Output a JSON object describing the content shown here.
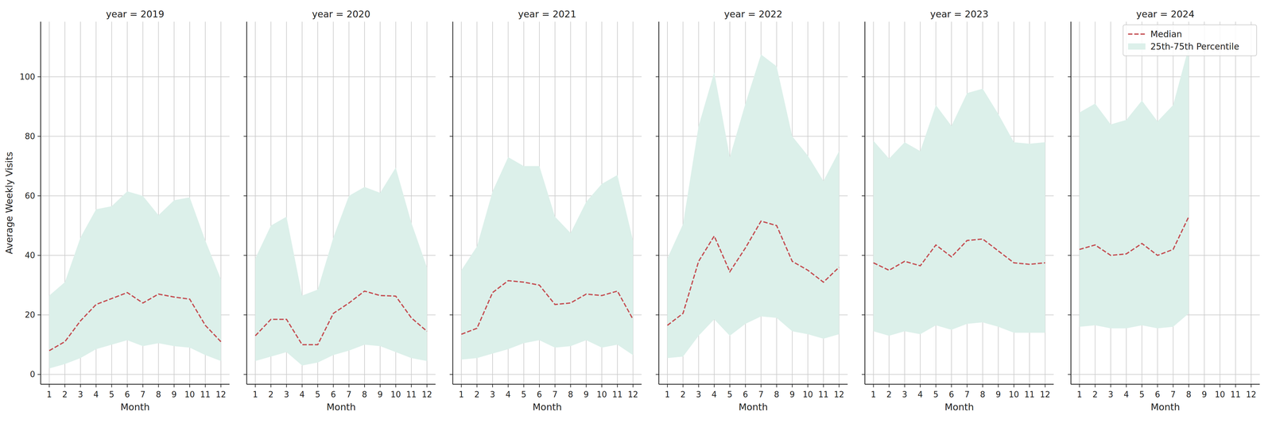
{
  "chart_data": [
    {
      "type": "line",
      "title": "year = 2019",
      "x_label": "Month",
      "y_label": "Average Weekly Visits",
      "x": [
        1,
        2,
        3,
        4,
        5,
        6,
        7,
        8,
        9,
        10,
        11,
        12
      ],
      "xlim": [
        0.45,
        12.55
      ],
      "xticks": [
        1,
        2,
        3,
        4,
        5,
        6,
        7,
        8,
        9,
        10,
        11,
        12
      ],
      "ylim": [
        -3.3,
        118.5
      ],
      "yticks": [
        0,
        20,
        40,
        60,
        80,
        100
      ],
      "grid": true,
      "series": [
        {
          "name": "Median",
          "type": "line",
          "line_style": "dashed",
          "color": "#c44e52",
          "values": [
            8,
            11,
            18,
            23.5,
            25.5,
            27.5,
            24,
            27,
            26,
            25.3,
            16.5,
            11
          ]
        },
        {
          "name": "25th-75th Percentile",
          "type": "area",
          "color": "#dcf0ea",
          "lower": [
            2,
            3.5,
            5.5,
            8.5,
            10,
            11.5,
            9.5,
            10.5,
            9.5,
            9,
            6.5,
            4.5
          ],
          "upper": [
            26.5,
            31,
            46,
            55.5,
            56.5,
            61.5,
            60,
            53.5,
            58.5,
            59.5,
            45,
            32
          ]
        }
      ]
    },
    {
      "type": "line",
      "title": "year = 2020",
      "x_label": "Month",
      "tick_labels": "x",
      "x": [
        1,
        2,
        3,
        4,
        5,
        6,
        7,
        8,
        9,
        10,
        11,
        12
      ],
      "xlim": [
        0.45,
        12.55
      ],
      "xticks": [
        1,
        2,
        3,
        4,
        5,
        6,
        7,
        8,
        9,
        10,
        11,
        12
      ],
      "ylim": [
        -3.3,
        118.5
      ],
      "yticks": [
        0,
        20,
        40,
        60,
        80,
        100
      ],
      "grid": true,
      "series": [
        {
          "name": "Median",
          "type": "line",
          "line_style": "dashed",
          "color": "#c44e52",
          "values": [
            13,
            18.5,
            18.5,
            10,
            10,
            20.5,
            24,
            28,
            26.5,
            26.3,
            19,
            14.5
          ]
        },
        {
          "name": "25th-75th Percentile",
          "type": "area",
          "color": "#dcf0ea",
          "lower": [
            4.5,
            6,
            7.5,
            3,
            4,
            6.5,
            8,
            10,
            9.5,
            7.5,
            5.5,
            4.5
          ],
          "upper": [
            39,
            50,
            53,
            26.5,
            28.5,
            46,
            60,
            63,
            61,
            69.5,
            51,
            36
          ]
        }
      ]
    },
    {
      "type": "line",
      "title": "year = 2021",
      "x_label": "Month",
      "tick_labels": "x",
      "x": [
        1,
        2,
        3,
        4,
        5,
        6,
        7,
        8,
        9,
        10,
        11,
        12
      ],
      "xlim": [
        0.45,
        12.55
      ],
      "xticks": [
        1,
        2,
        3,
        4,
        5,
        6,
        7,
        8,
        9,
        10,
        11,
        12
      ],
      "ylim": [
        -3.3,
        118.5
      ],
      "yticks": [
        0,
        20,
        40,
        60,
        80,
        100
      ],
      "grid": true,
      "series": [
        {
          "name": "Median",
          "type": "line",
          "line_style": "dashed",
          "color": "#c44e52",
          "values": [
            13.5,
            15.5,
            27.5,
            31.5,
            31,
            30,
            23.5,
            24,
            27,
            26.5,
            28,
            18.5
          ]
        },
        {
          "name": "25th-75th Percentile",
          "type": "area",
          "color": "#dcf0ea",
          "lower": [
            5,
            5.5,
            7,
            8.5,
            10.5,
            11.5,
            9,
            9.5,
            11.5,
            9,
            10,
            6.5
          ],
          "upper": [
            35,
            43,
            61.5,
            73,
            70,
            70,
            53,
            47.5,
            58,
            64,
            67,
            45
          ]
        }
      ]
    },
    {
      "type": "line",
      "title": "year = 2022",
      "x_label": "Month",
      "tick_labels": "x",
      "x": [
        1,
        2,
        3,
        4,
        5,
        6,
        7,
        8,
        9,
        10,
        11,
        12
      ],
      "xlim": [
        0.45,
        12.55
      ],
      "xticks": [
        1,
        2,
        3,
        4,
        5,
        6,
        7,
        8,
        9,
        10,
        11,
        12
      ],
      "ylim": [
        -3.3,
        118.5
      ],
      "yticks": [
        0,
        20,
        40,
        60,
        80,
        100
      ],
      "grid": true,
      "series": [
        {
          "name": "Median",
          "type": "line",
          "line_style": "dashed",
          "color": "#c44e52",
          "values": [
            16.5,
            20.5,
            38,
            46.5,
            34.5,
            42.5,
            51.5,
            50,
            38,
            35,
            31,
            36
          ]
        },
        {
          "name": "25th-75th Percentile",
          "type": "area",
          "color": "#dcf0ea",
          "lower": [
            5.5,
            6,
            13,
            18.5,
            13,
            17,
            19.5,
            19,
            14.5,
            13.5,
            12,
            13.5
          ],
          "upper": [
            39,
            50.5,
            83.5,
            101.5,
            73,
            91,
            107.5,
            103.5,
            80,
            73.5,
            65,
            75
          ]
        }
      ]
    },
    {
      "type": "line",
      "title": "year = 2023",
      "x_label": "Month",
      "tick_labels": "x",
      "x": [
        1,
        2,
        3,
        4,
        5,
        6,
        7,
        8,
        9,
        10,
        11,
        12
      ],
      "xlim": [
        0.45,
        12.55
      ],
      "xticks": [
        1,
        2,
        3,
        4,
        5,
        6,
        7,
        8,
        9,
        10,
        11,
        12
      ],
      "ylim": [
        -3.3,
        118.5
      ],
      "yticks": [
        0,
        20,
        40,
        60,
        80,
        100
      ],
      "grid": true,
      "series": [
        {
          "name": "Median",
          "type": "line",
          "line_style": "dashed",
          "color": "#c44e52",
          "values": [
            37.5,
            35,
            38,
            36.5,
            43.5,
            39.5,
            45,
            45.5,
            41.5,
            37.5,
            37,
            37.5
          ]
        },
        {
          "name": "25th-75th Percentile",
          "type": "area",
          "color": "#dcf0ea",
          "lower": [
            14.5,
            13,
            14.5,
            13.5,
            16.5,
            15,
            17,
            17.5,
            16,
            14,
            14,
            14
          ],
          "upper": [
            78.5,
            72.5,
            78,
            75,
            90.5,
            83.5,
            94.5,
            96,
            87.5,
            78,
            77.5,
            78
          ]
        }
      ]
    },
    {
      "type": "line",
      "title": "year = 2024",
      "x_label": "Month",
      "tick_labels": "x",
      "legend": "upper right",
      "x": [
        1,
        2,
        3,
        4,
        5,
        6,
        7,
        8
      ],
      "xlim": [
        0.45,
        12.55
      ],
      "xticks": [
        1,
        2,
        3,
        4,
        5,
        6,
        7,
        8,
        9,
        10,
        11,
        12
      ],
      "ylim": [
        -3.3,
        118.5
      ],
      "yticks": [
        0,
        20,
        40,
        60,
        80,
        100
      ],
      "grid": true,
      "series": [
        {
          "name": "Median",
          "type": "line",
          "line_style": "dashed",
          "color": "#c44e52",
          "values": [
            42,
            43.5,
            40,
            40.5,
            44,
            40,
            42,
            53
          ]
        },
        {
          "name": "25th-75th Percentile",
          "type": "area",
          "color": "#dcf0ea",
          "lower": [
            16,
            16.5,
            15.5,
            15.5,
            16.5,
            15.5,
            16,
            20.5
          ],
          "upper": [
            88,
            91,
            84,
            85.5,
            92,
            85,
            90.5,
            110
          ]
        }
      ]
    }
  ]
}
